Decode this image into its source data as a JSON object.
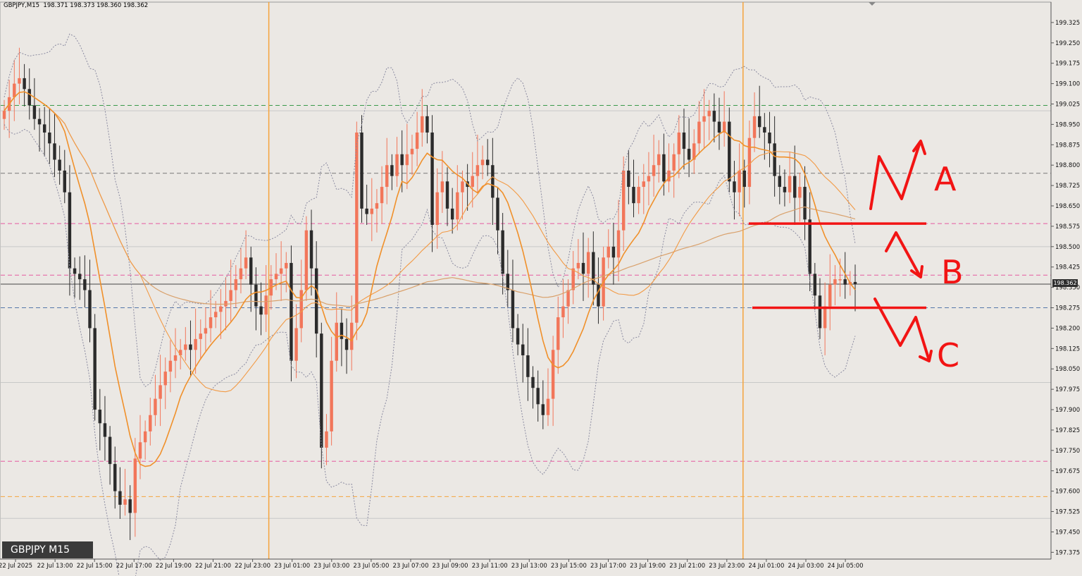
{
  "header": {
    "symbol_info": "GBPJPY,M15  198.371 198.373 198.360 198.362"
  },
  "badge": {
    "label": "GBPJPY M15"
  },
  "current_price_tag": "198.362",
  "colors": {
    "background": "#ebe8e4",
    "bull_candle": "#f2765a",
    "bear_candle": "#2b2b2b",
    "ma_fast": "#f0902a",
    "ma_slow": "#f29a45",
    "ma_200": "#d9a06a",
    "bollinger": "#8a8aa0",
    "session_line": "#f5a33c",
    "annotation": "#f21414"
  },
  "chart_data": {
    "type": "candlestick",
    "symbol": "GBPJPY",
    "timeframe": "M15",
    "ylim": [
      197.35,
      199.4
    ],
    "yticks": [
      "199.325",
      "199.250",
      "199.175",
      "199.100",
      "199.025",
      "198.950",
      "198.875",
      "198.800",
      "198.725",
      "198.650",
      "198.575",
      "198.500",
      "198.425",
      "198.350",
      "198.275",
      "198.200",
      "198.125",
      "198.050",
      "197.975",
      "197.900",
      "197.825",
      "197.750",
      "197.675",
      "197.600",
      "197.525",
      "197.450",
      "197.375"
    ],
    "xticks": [
      "22 Jul 2025",
      "22 Jul 13:00",
      "22 Jul 15:00",
      "22 Jul 17:00",
      "22 Jul 19:00",
      "22 Jul 21:00",
      "22 Jul 23:00",
      "23 Jul 01:00",
      "23 Jul 03:00",
      "23 Jul 05:00",
      "23 Jul 07:00",
      "23 Jul 09:00",
      "23 Jul 11:00",
      "23 Jul 13:00",
      "23 Jul 15:00",
      "23 Jul 17:00",
      "23 Jul 19:00",
      "23 Jul 21:00",
      "23 Jul 23:00",
      "24 Jul 01:00",
      "24 Jul 03:00",
      "24 Jul 05:00"
    ],
    "close_series": [
      199.0,
      199.05,
      199.1,
      199.12,
      199.08,
      199.02,
      198.97,
      198.95,
      198.92,
      198.88,
      198.82,
      198.78,
      198.7,
      198.42,
      198.4,
      198.38,
      198.34,
      198.2,
      197.9,
      197.85,
      197.8,
      197.7,
      197.6,
      197.55,
      197.57,
      197.52,
      197.72,
      197.78,
      197.82,
      197.88,
      197.94,
      197.99,
      198.04,
      198.08,
      198.1,
      198.12,
      198.14,
      198.12,
      198.16,
      198.18,
      198.2,
      198.24,
      198.26,
      198.28,
      198.3,
      198.34,
      198.38,
      198.42,
      198.46,
      198.36,
      198.28,
      198.25,
      198.32,
      198.38,
      198.4,
      198.42,
      198.44,
      198.08,
      198.2,
      198.34,
      198.56,
      198.42,
      198.18,
      197.76,
      197.82,
      198.08,
      198.22,
      198.16,
      198.12,
      198.22,
      198.92,
      198.64,
      198.62,
      198.64,
      198.66,
      198.72,
      198.8,
      198.76,
      198.84,
      198.8,
      198.84,
      198.86,
      198.92,
      198.98,
      198.92,
      198.58,
      198.7,
      198.74,
      198.64,
      198.6,
      198.7,
      198.74,
      198.72,
      198.76,
      198.8,
      198.82,
      198.8,
      198.68,
      198.56,
      198.4,
      198.34,
      198.2,
      198.14,
      198.1,
      198.02,
      197.98,
      197.92,
      197.88,
      197.94,
      198.12,
      198.24,
      198.28,
      198.34,
      198.42,
      198.44,
      198.4,
      198.48,
      198.36,
      198.28,
      198.46,
      198.5,
      198.46,
      198.56,
      198.78,
      198.72,
      198.66,
      198.72,
      198.74,
      198.76,
      198.8,
      198.84,
      198.74,
      198.78,
      198.84,
      198.92,
      198.86,
      198.82,
      198.88,
      198.96,
      198.98,
      199.0,
      198.96,
      198.92,
      198.96,
      198.74,
      198.7,
      198.78,
      198.72,
      198.9,
      198.98,
      198.94,
      198.92,
      198.88,
      198.76,
      198.72,
      198.7,
      198.76,
      198.68,
      198.72,
      198.6,
      198.4,
      198.32,
      198.2,
      198.28,
      198.36,
      198.38,
      198.38,
      198.36,
      198.37,
      198.362
    ],
    "horizontal_levels": [
      {
        "price": 199.02,
        "style": "dashed",
        "color": "#3a9a4a"
      },
      {
        "price": 198.77,
        "style": "dashed",
        "color": "#777777"
      },
      {
        "price": 198.585,
        "style": "dashed",
        "color": "#e65aa0"
      },
      {
        "price": 198.395,
        "style": "dashed",
        "color": "#e65aa0"
      },
      {
        "price": 198.362,
        "style": "solid",
        "color": "#444444"
      },
      {
        "price": 198.275,
        "style": "dashed",
        "color": "#5577aa"
      },
      {
        "price": 197.71,
        "style": "dashed",
        "color": "#e65aa0"
      },
      {
        "price": 197.58,
        "style": "dashed",
        "color": "#f5a33c"
      },
      {
        "price": 199.0,
        "style": "solid",
        "color": "#c8c8c8"
      },
      {
        "price": 198.5,
        "style": "solid",
        "color": "#c8c8c8"
      },
      {
        "price": 198.0,
        "style": "solid",
        "color": "#c8c8c8"
      },
      {
        "price": 197.5,
        "style": "solid",
        "color": "#c8c8c8"
      }
    ],
    "session_lines": [
      "22 Jul 23:00",
      "23 Jul 23:00"
    ],
    "annotations": {
      "labels": [
        "A",
        "B",
        "C"
      ],
      "levels": [
        198.585,
        198.275
      ]
    }
  }
}
